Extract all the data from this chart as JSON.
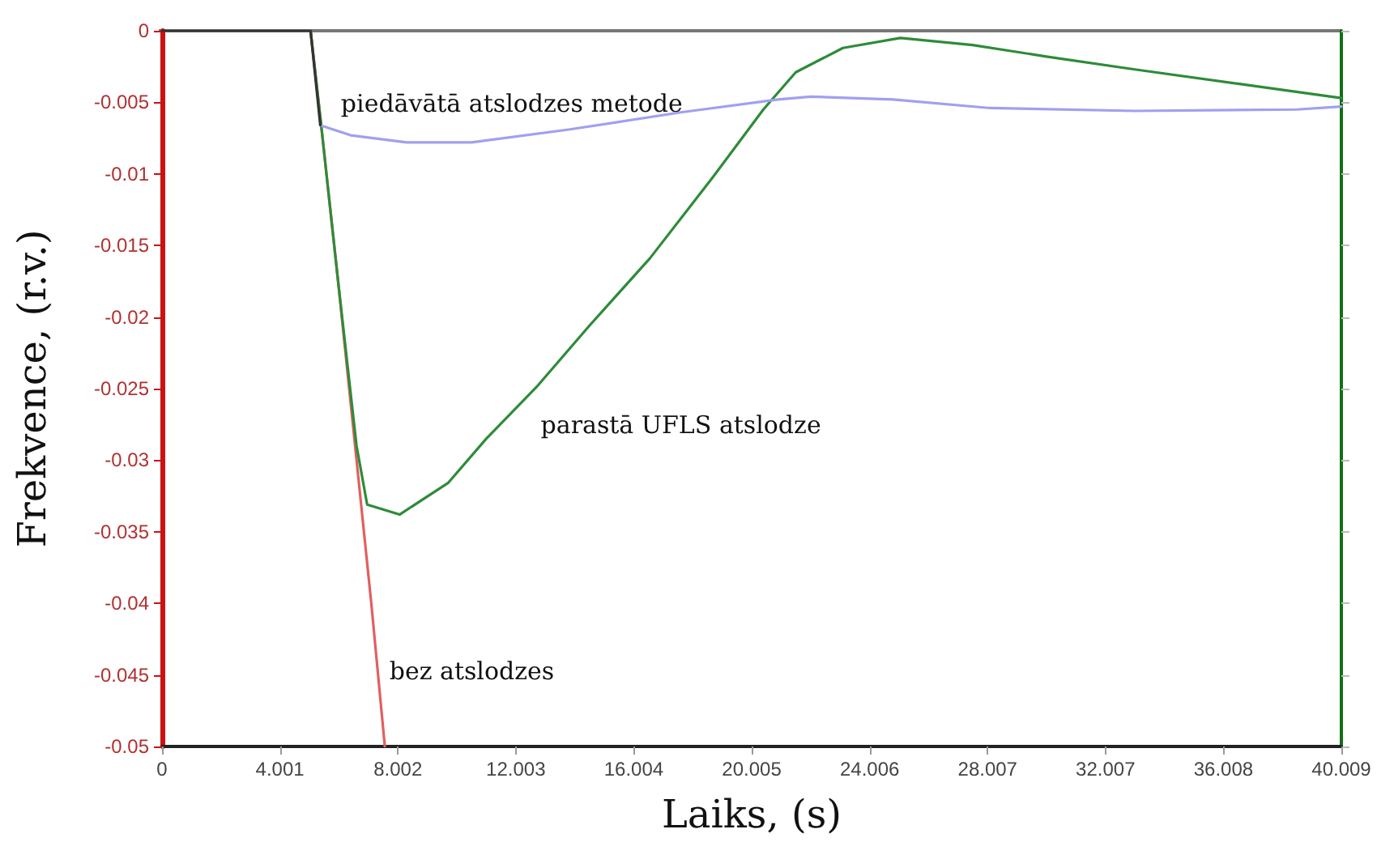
{
  "chart_data": {
    "type": "line",
    "xlabel": "Laiks, (s)",
    "ylabel": "Frekvence, (r.v.)",
    "xlim": [
      0,
      40.009
    ],
    "xticks": [
      0,
      4.001,
      8.002,
      12.003,
      16.004,
      20.005,
      24.006,
      28.007,
      32.007,
      36.008,
      40.009
    ],
    "ylim": [
      -0.05,
      0
    ],
    "yticks": [
      -0.05,
      -0.045,
      -0.04,
      -0.035,
      -0.03,
      -0.025,
      -0.02,
      -0.015,
      -0.01,
      -0.005,
      0
    ],
    "grid": false,
    "marker": "none",
    "line_style": "solid",
    "series": [
      {
        "color": "#e06060",
        "x": [
          5.04,
          5.4,
          6.0,
          6.6,
          7.1,
          7.56
        ],
        "values": [
          0,
          -0.0066,
          -0.018,
          -0.03,
          -0.04,
          -0.05
        ]
      },
      {
        "color": "#2e8b3a",
        "x": [
          5.04,
          5.4,
          6.0,
          6.6,
          6.96,
          8.06,
          9.7,
          11.0,
          12.7,
          14.5,
          16.55,
          18.7,
          20.4,
          21.5,
          23.1,
          25.05,
          27.5,
          30.0,
          33.0,
          36.5,
          40.009
        ],
        "values": [
          0,
          -0.0066,
          -0.018,
          -0.029,
          -0.0331,
          -0.0338,
          -0.0316,
          -0.0285,
          -0.0249,
          -0.0206,
          -0.0159,
          -0.0102,
          -0.0055,
          -0.0029,
          -0.0012,
          -0.0005,
          -0.001,
          -0.0018,
          -0.0027,
          -0.0037,
          -0.0047
        ]
      },
      {
        "color": "#a0a0f0",
        "x": [
          5.37,
          6.4,
          8.3,
          10.5,
          13.8,
          17.6,
          20.9,
          22.0,
          24.8,
          28.1,
          33.0,
          38.5,
          40.009
        ],
        "values": [
          -0.0066,
          -0.0073,
          -0.0078,
          -0.0078,
          -0.0069,
          -0.0057,
          -0.0048,
          -0.0046,
          -0.0048,
          -0.0054,
          -0.0056,
          -0.0055,
          -0.0053
        ]
      },
      {
        "color": "#333333",
        "x": [
          0,
          5.04,
          5.37
        ],
        "values": [
          0,
          0,
          -0.0066
        ]
      }
    ],
    "annotations": [
      "piedāvātā atslodzes metode",
      "parastā UFLS atslodze",
      "bez atslodzes"
    ]
  }
}
